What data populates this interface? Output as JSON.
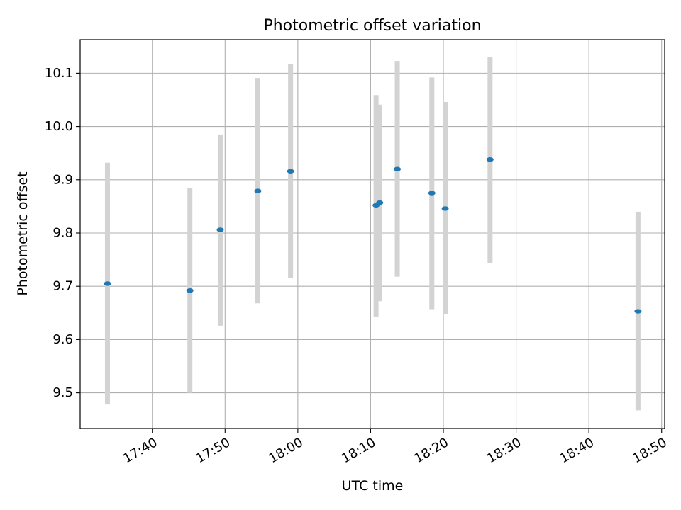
{
  "chart_data": {
    "type": "scatter",
    "title": "Photometric offset variation",
    "xlabel": "UTC time",
    "ylabel": "Photometric offset",
    "x_axis_kind": "time",
    "xlim": [
      "17:30:05",
      "18:50:25"
    ],
    "ylim": [
      9.433,
      10.163
    ],
    "x_ticks": [
      "17:40",
      "17:50",
      "18:00",
      "18:10",
      "18:20",
      "18:30",
      "18:40",
      "18:50"
    ],
    "y_ticks": [
      9.5,
      9.6,
      9.7,
      9.8,
      9.9,
      10.0,
      10.1
    ],
    "grid": true,
    "colors": {
      "point": "#1f77b4",
      "errorbar": "#d3d3d3",
      "grid": "#b0b0b0"
    },
    "series": [
      {
        "points": [
          {
            "x": "17:33:50",
            "y": 9.705,
            "yerr_low": 9.478,
            "yerr_high": 9.932
          },
          {
            "x": "17:45:10",
            "y": 9.692,
            "yerr_low": 9.5,
            "yerr_high": 9.885
          },
          {
            "x": "17:49:20",
            "y": 9.806,
            "yerr_low": 9.626,
            "yerr_high": 9.985
          },
          {
            "x": "17:54:30",
            "y": 9.879,
            "yerr_low": 9.668,
            "yerr_high": 10.091
          },
          {
            "x": "17:59:00",
            "y": 9.916,
            "yerr_low": 9.716,
            "yerr_high": 10.117
          },
          {
            "x": "18:10:45",
            "y": 9.852,
            "yerr_low": 9.643,
            "yerr_high": 10.059
          },
          {
            "x": "18:11:15",
            "y": 9.857,
            "yerr_low": 9.672,
            "yerr_high": 10.041
          },
          {
            "x": "18:13:40",
            "y": 9.92,
            "yerr_low": 9.718,
            "yerr_high": 10.123
          },
          {
            "x": "18:18:25",
            "y": 9.875,
            "yerr_low": 9.657,
            "yerr_high": 10.092
          },
          {
            "x": "18:20:15",
            "y": 9.846,
            "yerr_low": 9.647,
            "yerr_high": 10.046
          },
          {
            "x": "18:26:25",
            "y": 9.938,
            "yerr_low": 9.744,
            "yerr_high": 10.13
          },
          {
            "x": "18:46:45",
            "y": 9.653,
            "yerr_low": 9.467,
            "yerr_high": 9.84
          }
        ]
      }
    ]
  }
}
